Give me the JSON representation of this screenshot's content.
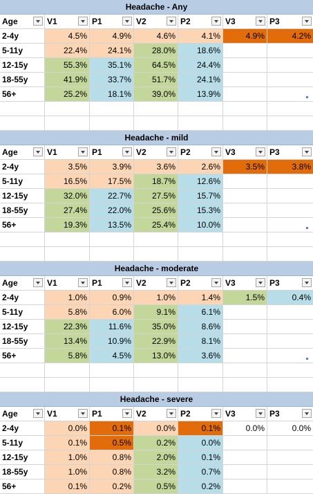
{
  "colors": {
    "title_bg": "#b8cce4",
    "peach": "#fcd5b4",
    "orange": "#e26b0a",
    "green": "#c4d79b",
    "blue": "#b7dee8"
  },
  "columns": [
    "Age",
    "V1",
    "P1",
    "V2",
    "P2",
    "V3",
    "P3"
  ],
  "tables": [
    {
      "title": "Headache - Any",
      "rows": [
        {
          "age": "2-4y",
          "values": [
            "4.5%",
            "4.9%",
            "4.6%",
            "4.1%",
            "4.9%",
            "4.2%"
          ],
          "fills": [
            "peach",
            "peach",
            "peach",
            "peach",
            "orange",
            "orange"
          ]
        },
        {
          "age": "5-11y",
          "values": [
            "22.4%",
            "24.1%",
            "28.0%",
            "18.6%",
            "",
            ""
          ],
          "fills": [
            "peach",
            "peach",
            "green",
            "blue",
            "",
            ""
          ]
        },
        {
          "age": "12-15y",
          "values": [
            "55.3%",
            "35.1%",
            "64.5%",
            "24.4%",
            "",
            ""
          ],
          "fills": [
            "green",
            "blue",
            "green",
            "blue",
            "",
            ""
          ]
        },
        {
          "age": "18-55y",
          "values": [
            "41.9%",
            "33.7%",
            "51.7%",
            "24.1%",
            "",
            ""
          ],
          "fills": [
            "green",
            "blue",
            "green",
            "blue",
            "",
            ""
          ]
        },
        {
          "age": "56+",
          "values": [
            "25.2%",
            "18.1%",
            "39.0%",
            "13.9%",
            "",
            ""
          ],
          "fills": [
            "green",
            "blue",
            "green",
            "blue",
            "",
            ""
          ]
        }
      ]
    },
    {
      "title": "Headache - mild",
      "rows": [
        {
          "age": "2-4y",
          "values": [
            "3.5%",
            "3.9%",
            "3.6%",
            "2.6%",
            "3.5%",
            "3.8%"
          ],
          "fills": [
            "peach",
            "peach",
            "peach",
            "peach",
            "orange",
            "orange"
          ]
        },
        {
          "age": "5-11y",
          "values": [
            "16.5%",
            "17.5%",
            "18.7%",
            "12.6%",
            "",
            ""
          ],
          "fills": [
            "peach",
            "peach",
            "green",
            "blue",
            "",
            ""
          ]
        },
        {
          "age": "12-15y",
          "values": [
            "32.0%",
            "22.7%",
            "27.5%",
            "15.7%",
            "",
            ""
          ],
          "fills": [
            "green",
            "blue",
            "green",
            "blue",
            "",
            ""
          ]
        },
        {
          "age": "18-55y",
          "values": [
            "27.4%",
            "22.0%",
            "25.6%",
            "15.3%",
            "",
            ""
          ],
          "fills": [
            "green",
            "blue",
            "green",
            "blue",
            "",
            ""
          ]
        },
        {
          "age": "56+",
          "values": [
            "19.3%",
            "13.5%",
            "25.4%",
            "10.0%",
            "",
            ""
          ],
          "fills": [
            "green",
            "blue",
            "green",
            "blue",
            "",
            ""
          ]
        }
      ]
    },
    {
      "title": "Headache - moderate",
      "rows": [
        {
          "age": "2-4y",
          "values": [
            "1.0%",
            "0.9%",
            "1.0%",
            "1.4%",
            "1.5%",
            "0.4%"
          ],
          "fills": [
            "peach",
            "peach",
            "peach",
            "peach",
            "green",
            "blue"
          ]
        },
        {
          "age": "5-11y",
          "values": [
            "5.8%",
            "6.0%",
            "9.1%",
            "6.1%",
            "",
            ""
          ],
          "fills": [
            "peach",
            "peach",
            "green",
            "blue",
            "",
            ""
          ]
        },
        {
          "age": "12-15y",
          "values": [
            "22.3%",
            "11.6%",
            "35.0%",
            "8.6%",
            "",
            ""
          ],
          "fills": [
            "green",
            "blue",
            "green",
            "blue",
            "",
            ""
          ]
        },
        {
          "age": "18-55y",
          "values": [
            "13.4%",
            "10.9%",
            "22.9%",
            "8.1%",
            "",
            ""
          ],
          "fills": [
            "green",
            "blue",
            "green",
            "blue",
            "",
            ""
          ]
        },
        {
          "age": "56+",
          "values": [
            "5.8%",
            "4.5%",
            "13.0%",
            "3.6%",
            "",
            ""
          ],
          "fills": [
            "green",
            "blue",
            "green",
            "blue",
            "",
            ""
          ]
        }
      ]
    },
    {
      "title": "Headache - severe",
      "rows": [
        {
          "age": "2-4y",
          "values": [
            "0.0%",
            "0.1%",
            "0.0%",
            "0.1%",
            "0.0%",
            "0.0%"
          ],
          "fills": [
            "peach",
            "orange",
            "peach",
            "orange",
            "",
            ""
          ]
        },
        {
          "age": "5-11y",
          "values": [
            "0.1%",
            "0.5%",
            "0.2%",
            "0.0%",
            "",
            ""
          ],
          "fills": [
            "peach",
            "orange",
            "green",
            "blue",
            "",
            ""
          ]
        },
        {
          "age": "12-15y",
          "values": [
            "1.0%",
            "0.8%",
            "2.0%",
            "0.1%",
            "",
            ""
          ],
          "fills": [
            "peach",
            "peach",
            "green",
            "blue",
            "",
            ""
          ]
        },
        {
          "age": "18-55y",
          "values": [
            "1.0%",
            "0.8%",
            "3.2%",
            "0.7%",
            "",
            ""
          ],
          "fills": [
            "peach",
            "peach",
            "green",
            "blue",
            "",
            ""
          ]
        },
        {
          "age": "56+",
          "values": [
            "0.1%",
            "0.2%",
            "0.5%",
            "0.2%",
            "",
            ""
          ],
          "fills": [
            "peach",
            "peach",
            "green",
            "blue",
            "",
            ""
          ]
        }
      ]
    }
  ]
}
